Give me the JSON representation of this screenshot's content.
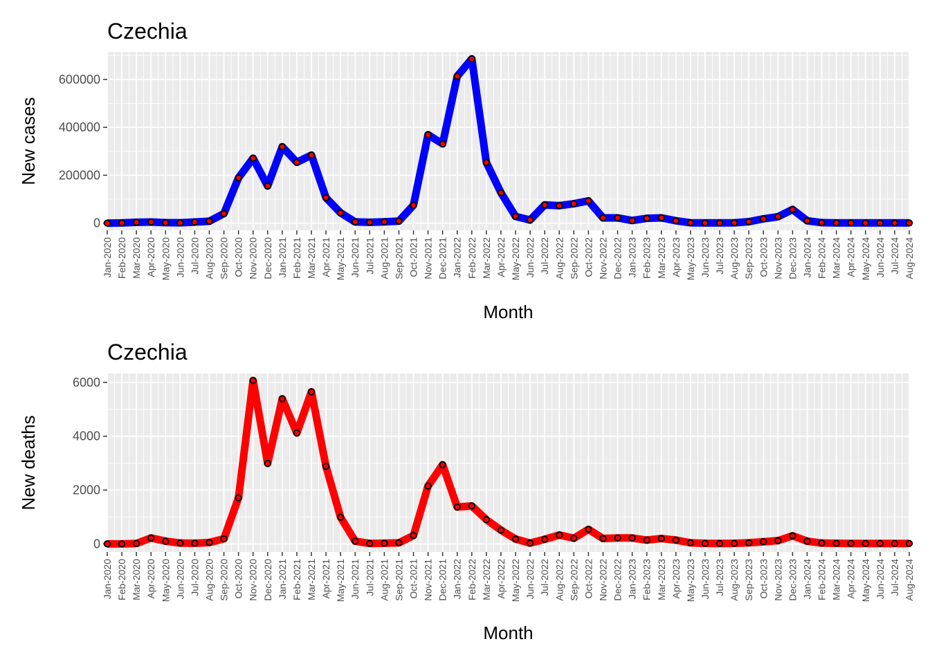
{
  "chart_data": [
    {
      "type": "line",
      "title": "Czechia",
      "xlabel": "Month",
      "ylabel": "New cases",
      "ylim": [
        -30000,
        715000
      ],
      "yticks": [
        0,
        200000,
        400000,
        600000
      ],
      "line_color": "#0000ff",
      "point_fill": "#ff0000",
      "grid": true,
      "legend": "none",
      "categories": [
        "Jan-2020",
        "Feb-2020",
        "Mar-2020",
        "Apr-2020",
        "May-2020",
        "Jun-2020",
        "Jul-2020",
        "Aug-2020",
        "Sep-2020",
        "Oct-2020",
        "Nov-2020",
        "Dec-2020",
        "Jan-2021",
        "Feb-2021",
        "Mar-2021",
        "Apr-2021",
        "May-2021",
        "Jun-2021",
        "Jul-2021",
        "Aug-2021",
        "Sep-2021",
        "Oct-2021",
        "Nov-2021",
        "Dec-2021",
        "Jan-2022",
        "Feb-2022",
        "Mar-2022",
        "Apr-2022",
        "May-2022",
        "Jun-2022",
        "Jul-2022",
        "Aug-2022",
        "Sep-2022",
        "Oct-2022",
        "Nov-2022",
        "Dec-2022",
        "Jan-2023",
        "Feb-2023",
        "Mar-2023",
        "Apr-2023",
        "May-2023",
        "Jun-2023",
        "Jul-2023",
        "Aug-2023",
        "Sep-2023",
        "Oct-2023",
        "Nov-2023",
        "Dec-2023",
        "Jan-2024",
        "Feb-2024",
        "Mar-2024",
        "Apr-2024",
        "May-2024",
        "Jun-2024",
        "Jul-2024",
        "Aug-2024"
      ],
      "values": [
        0,
        1000,
        3500,
        4500,
        2000,
        1500,
        4500,
        8000,
        40000,
        189000,
        271000,
        155000,
        319000,
        254000,
        284000,
        106000,
        43000,
        5000,
        3500,
        5500,
        8500,
        75000,
        369000,
        331000,
        613000,
        686000,
        253000,
        127000,
        28000,
        13000,
        76000,
        73000,
        81000,
        93000,
        22000,
        22000,
        11000,
        20000,
        22000,
        10000,
        1500,
        1000,
        1000,
        1500,
        6000,
        18000,
        27000,
        57000,
        10000,
        2000,
        1000,
        1000,
        1000,
        1000,
        1000,
        1000
      ]
    },
    {
      "type": "line",
      "title": "Czechia",
      "xlabel": "Month",
      "ylabel": "New deaths",
      "ylim": [
        -300,
        6330
      ],
      "yticks": [
        0,
        2000,
        4000,
        6000
      ],
      "line_color": "#ff0000",
      "point_fill": "#ff0000",
      "grid": true,
      "legend": "none",
      "categories": [
        "Jan-2020",
        "Feb-2020",
        "Mar-2020",
        "Apr-2020",
        "May-2020",
        "Jun-2020",
        "Jul-2020",
        "Aug-2020",
        "Sep-2020",
        "Oct-2020",
        "Nov-2020",
        "Dec-2020",
        "Jan-2021",
        "Feb-2021",
        "Mar-2021",
        "Apr-2021",
        "May-2021",
        "Jun-2021",
        "Jul-2021",
        "Aug-2021",
        "Sep-2021",
        "Oct-2021",
        "Nov-2021",
        "Dec-2021",
        "Jan-2022",
        "Feb-2022",
        "Mar-2022",
        "Apr-2022",
        "May-2022",
        "Jun-2022",
        "Jul-2022",
        "Aug-2022",
        "Sep-2022",
        "Oct-2022",
        "Nov-2022",
        "Dec-2022",
        "Jan-2023",
        "Feb-2023",
        "Mar-2023",
        "Apr-2023",
        "May-2023",
        "Jun-2023",
        "Jul-2023",
        "Aug-2023",
        "Sep-2023",
        "Oct-2023",
        "Nov-2023",
        "Dec-2023",
        "Jan-2024",
        "Feb-2024",
        "Mar-2024",
        "Apr-2024",
        "May-2024",
        "Jun-2024",
        "Jul-2024",
        "Aug-2024"
      ],
      "values": [
        0,
        0,
        15,
        220,
        100,
        30,
        25,
        50,
        190,
        1710,
        6070,
        2990,
        5390,
        4120,
        5650,
        2880,
        990,
        100,
        15,
        25,
        40,
        310,
        2150,
        2940,
        1370,
        1410,
        900,
        510,
        180,
        30,
        170,
        330,
        210,
        540,
        200,
        220,
        220,
        140,
        200,
        140,
        40,
        20,
        15,
        20,
        40,
        80,
        120,
        300,
        100,
        30,
        20,
        15,
        15,
        15,
        15,
        15
      ]
    }
  ]
}
